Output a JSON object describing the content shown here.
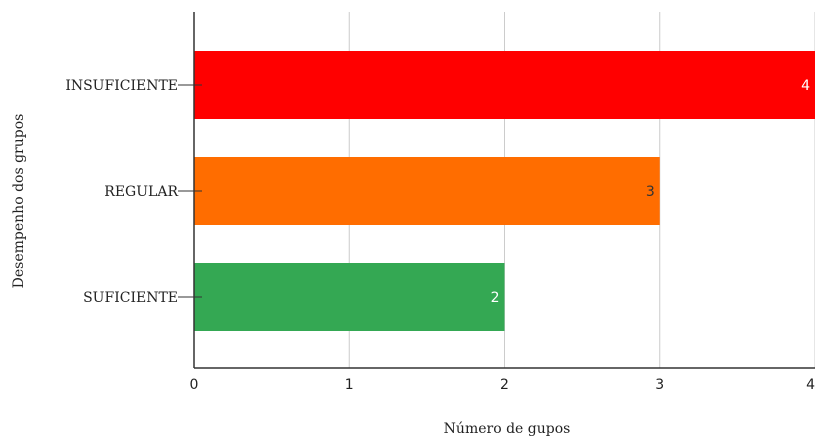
{
  "chart_data": {
    "type": "bar",
    "orientation": "horizontal",
    "categories": [
      "INSUFICIENTE",
      "REGULAR",
      "SUFICIENTE"
    ],
    "values": [
      4,
      3,
      2
    ],
    "bar_colors": [
      "#ff0000",
      "#ff6d00",
      "#34a853"
    ],
    "value_label_colors": [
      "#ffffff",
      "#333333",
      "#ffffff"
    ],
    "xlabel": "Número de gupos",
    "ylabel": "Desempenho dos grupos",
    "xlim": [
      0,
      4
    ],
    "xticks": [
      "0",
      "1",
      "2",
      "3",
      "4"
    ],
    "grid": true,
    "grid_color": "#cccccc",
    "axis_color": "#333333"
  }
}
